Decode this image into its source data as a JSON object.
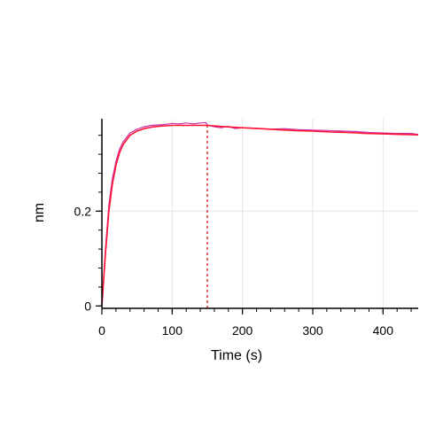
{
  "chart_data": {
    "type": "line",
    "xlabel": "Time (s)",
    "ylabel": "nm",
    "xlim": [
      0,
      450
    ],
    "ylim": [
      -0.005,
      0.395
    ],
    "x_ticks": [
      0,
      100,
      200,
      300,
      400
    ],
    "y_ticks": [
      0,
      0.2
    ],
    "x_tick_labels": [
      "0",
      "100",
      "200",
      "300",
      "400"
    ],
    "y_tick_labels": [
      "0",
      "0.2"
    ],
    "grid": true,
    "vline_x": 150,
    "colors": {
      "measured": "#cc33aa",
      "fit": "#ff1133",
      "vline": "#dd3333",
      "grid": "#e6e6e6"
    },
    "series": [
      {
        "role": "measured",
        "x": [
          0,
          2,
          5,
          10,
          15,
          20,
          25,
          30,
          40,
          50,
          60,
          70,
          80,
          90,
          100,
          110,
          120,
          130,
          140,
          148,
          150,
          160,
          170,
          180,
          190,
          200,
          220,
          240,
          260,
          280,
          300,
          320,
          340,
          360,
          380,
          400,
          420,
          440,
          450
        ],
        "y": [
          0,
          0.05,
          0.12,
          0.215,
          0.27,
          0.305,
          0.33,
          0.346,
          0.365,
          0.373,
          0.378,
          0.381,
          0.382,
          0.383,
          0.385,
          0.384,
          0.386,
          0.384,
          0.386,
          0.387,
          0.382,
          0.378,
          0.376,
          0.379,
          0.374,
          0.376,
          0.375,
          0.373,
          0.374,
          0.372,
          0.371,
          0.37,
          0.369,
          0.368,
          0.366,
          0.365,
          0.364,
          0.364,
          0.362
        ]
      },
      {
        "role": "fit",
        "x": [
          0,
          2,
          5,
          10,
          15,
          20,
          25,
          30,
          40,
          50,
          60,
          70,
          80,
          90,
          100,
          110,
          120,
          130,
          140,
          150,
          175,
          200,
          225,
          250,
          275,
          300,
          325,
          350,
          375,
          400,
          425,
          450
        ],
        "y": [
          0,
          0.045,
          0.11,
          0.2,
          0.258,
          0.297,
          0.323,
          0.34,
          0.36,
          0.369,
          0.374,
          0.377,
          0.379,
          0.38,
          0.381,
          0.381,
          0.381,
          0.381,
          0.381,
          0.381,
          0.378,
          0.376,
          0.374,
          0.372,
          0.37,
          0.369,
          0.367,
          0.366,
          0.364,
          0.363,
          0.362,
          0.361
        ]
      }
    ]
  }
}
